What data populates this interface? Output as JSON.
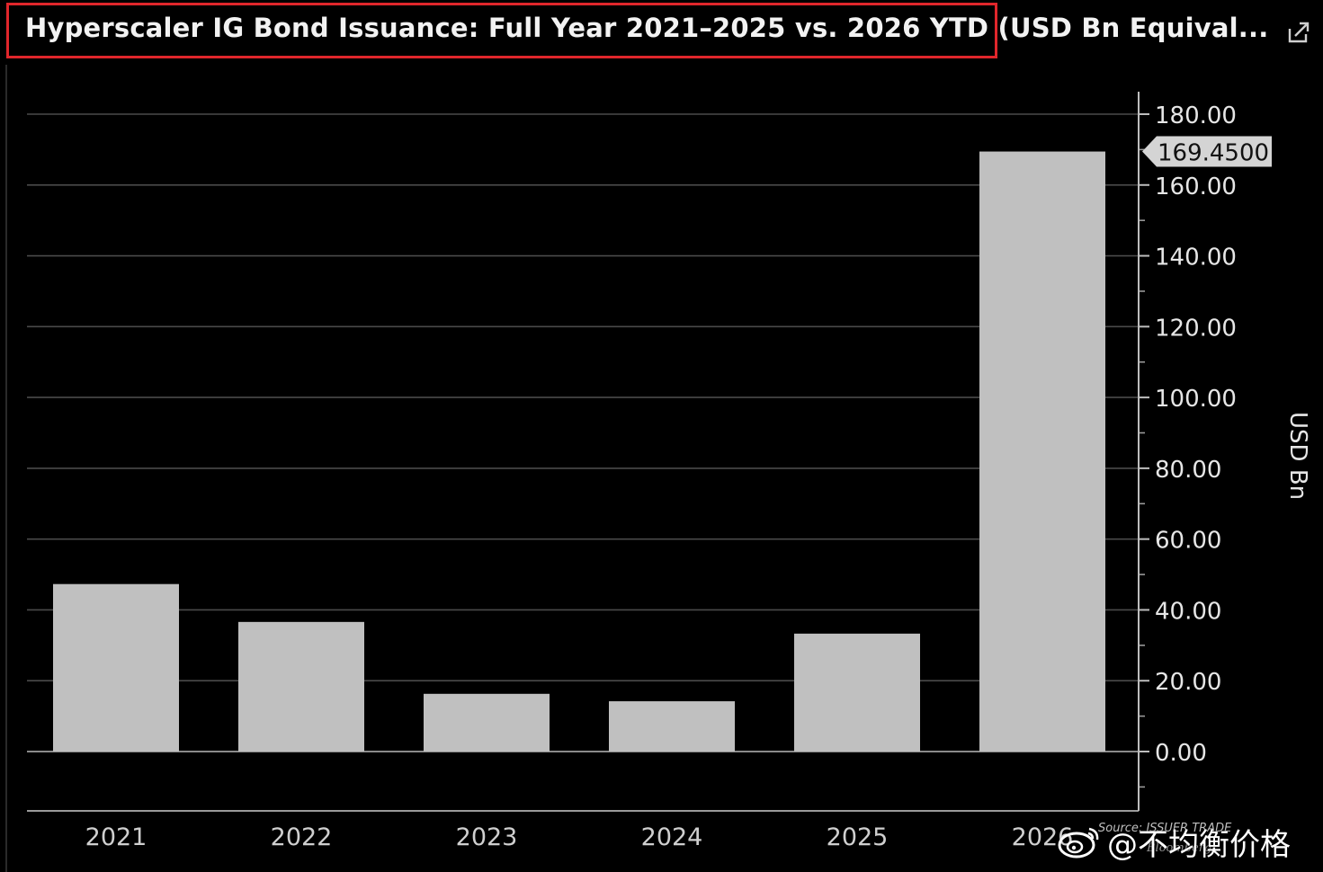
{
  "header": {
    "title": "Hyperscaler IG Bond Issuance: Full Year 2021–2025 vs. 2026 YTD (USD Bn Equival...",
    "highlight_color": "#e0262b",
    "export_icon": "external-link-icon"
  },
  "chart_data": {
    "type": "bar",
    "title": "Hyperscaler IG Bond Issuance: Full Year 2021–2025 vs. 2026 YTD (USD Bn Equival...",
    "categories": [
      "2021",
      "2022",
      "2023",
      "2024",
      "2025",
      "2026"
    ],
    "values": [
      47.3,
      36.6,
      16.3,
      14.2,
      33.3,
      169.45
    ],
    "ylabel": "USD Bn",
    "ylim": [
      -17,
      180
    ],
    "y_ticks": [
      0,
      20,
      40,
      60,
      80,
      100,
      120,
      140,
      160,
      180
    ],
    "y_tick_labels": [
      "0.00",
      "20.00",
      "40.00",
      "60.00",
      "80.00",
      "100.00",
      "120.00",
      "140.00",
      "160.00",
      "180.00"
    ],
    "last_value_label": "169.4500",
    "grid": true,
    "y_axis_side": "right",
    "bar_color": "#c0c0c0",
    "background_color": "#000000",
    "grid_color": "#4a4a4a"
  },
  "watermark": {
    "source_text": "Source: ISSUER TRADE",
    "brand_text": "Bloomberg",
    "handle": "@不均衡价格",
    "icon": "weibo-icon"
  }
}
